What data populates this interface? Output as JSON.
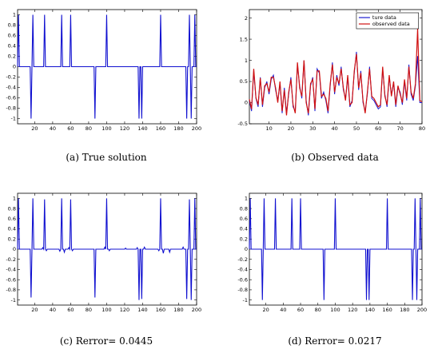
{
  "chart_data": [
    {
      "type": "line",
      "caption": "(a)  True solution",
      "xlim": [
        1,
        200
      ],
      "ylim": [
        -1.1,
        1.1
      ],
      "xticks": [
        20,
        40,
        60,
        80,
        100,
        120,
        140,
        160,
        180,
        200
      ],
      "yticks": [
        1,
        0.8,
        0.6,
        0.4,
        0.2,
        0,
        -0.2,
        -0.4,
        -0.6,
        -0.8,
        -1
      ],
      "color": "#1010d0",
      "spikes": [
        {
          "x": 2,
          "y": 1
        },
        {
          "x": 18,
          "y": 1
        },
        {
          "x": 16,
          "y": -1
        },
        {
          "x": 31,
          "y": 1
        },
        {
          "x": 50,
          "y": 1
        },
        {
          "x": 60,
          "y": 1
        },
        {
          "x": 87,
          "y": -1
        },
        {
          "x": 100,
          "y": 1
        },
        {
          "x": 136,
          "y": -1
        },
        {
          "x": 139,
          "y": -1
        },
        {
          "x": 160,
          "y": 1
        },
        {
          "x": 189,
          "y": -1
        },
        {
          "x": 192,
          "y": 1
        },
        {
          "x": 194,
          "y": -1
        },
        {
          "x": 198,
          "y": 1
        }
      ],
      "noise": []
    },
    {
      "type": "line",
      "caption": "(b)  Observed data",
      "xlim": [
        1,
        80
      ],
      "ylim": [
        -0.5,
        2.2
      ],
      "xticks": [
        10,
        20,
        30,
        40,
        50,
        60,
        70,
        80
      ],
      "yticks": [
        2,
        1.5,
        1,
        0.5,
        0,
        -0.5
      ],
      "legend": [
        "ture data",
        "observed data"
      ],
      "series": [
        {
          "name": "ture data",
          "color": "#1a1ad0",
          "x": [
            1,
            2,
            3,
            4,
            5,
            6,
            7,
            8,
            9,
            10,
            11,
            12,
            13,
            14,
            15,
            16,
            17,
            18,
            19,
            20,
            21,
            22,
            23,
            24,
            25,
            26,
            27,
            28,
            29,
            30,
            31,
            32,
            33,
            34,
            35,
            36,
            37,
            38,
            39,
            40,
            41,
            42,
            43,
            44,
            45,
            46,
            47,
            48,
            49,
            50,
            51,
            52,
            53,
            54,
            55,
            56,
            57,
            58,
            59,
            60,
            61,
            62,
            63,
            64,
            65,
            66,
            67,
            68,
            69,
            70,
            71,
            72,
            73,
            74,
            75,
            76,
            77,
            78,
            79,
            80
          ],
          "values": [
            0.05,
            -0.2,
            0.75,
            0.1,
            -0.1,
            0.6,
            -0.1,
            0.35,
            0.5,
            0.2,
            0.55,
            0.65,
            0.3,
            0.05,
            0.45,
            -0.25,
            0.35,
            -0.25,
            0.2,
            0.6,
            -0.1,
            -0.2,
            0.9,
            0.4,
            0.1,
            1.0,
            0.05,
            -0.3,
            0.4,
            0.6,
            -0.2,
            0.8,
            0.7,
            0.1,
            0.25,
            0.05,
            -0.25,
            0.4,
            0.95,
            0.2,
            0.65,
            0.4,
            0.85,
            0.3,
            0.1,
            0.6,
            -0.1,
            0.05,
            0.7,
            1.2,
            0.3,
            0.75,
            0.0,
            -0.2,
            0.2,
            0.85,
            0.1,
            0.05,
            -0.05,
            -0.15,
            -0.1,
            0.8,
            0.2,
            -0.1,
            0.6,
            0.2,
            0.45,
            -0.1,
            0.35,
            0.25,
            -0.05,
            0.5,
            0.05,
            0.9,
            0.2,
            0.05,
            0.4,
            1.1,
            0.0,
            0.0
          ]
        },
        {
          "name": "observed data",
          "color": "#d01010",
          "x": [
            1,
            2,
            3,
            4,
            5,
            6,
            7,
            8,
            9,
            10,
            11,
            12,
            13,
            14,
            15,
            16,
            17,
            18,
            19,
            20,
            21,
            22,
            23,
            24,
            25,
            26,
            27,
            28,
            29,
            30,
            31,
            32,
            33,
            34,
            35,
            36,
            37,
            38,
            39,
            40,
            41,
            42,
            43,
            44,
            45,
            46,
            47,
            48,
            49,
            50,
            51,
            52,
            53,
            54,
            55,
            56,
            57,
            58,
            59,
            60,
            61,
            62,
            63,
            64,
            65,
            66,
            67,
            68,
            69,
            70,
            71,
            72,
            73,
            74,
            75,
            76,
            77,
            78,
            79,
            80
          ],
          "values": [
            0.08,
            -0.15,
            0.8,
            0.12,
            -0.05,
            0.58,
            -0.05,
            0.4,
            0.45,
            0.25,
            0.6,
            0.6,
            0.35,
            0.0,
            0.5,
            -0.2,
            0.3,
            -0.3,
            0.25,
            0.55,
            -0.05,
            -0.25,
            0.95,
            0.35,
            0.15,
            1.0,
            0.0,
            -0.25,
            0.45,
            0.55,
            -0.15,
            0.75,
            0.75,
            0.15,
            0.2,
            0.1,
            -0.2,
            0.45,
            0.9,
            0.25,
            0.6,
            0.45,
            0.8,
            0.35,
            0.05,
            0.65,
            -0.05,
            0.0,
            0.75,
            1.15,
            0.35,
            0.7,
            0.05,
            -0.25,
            0.25,
            0.8,
            0.15,
            0.1,
            0.0,
            -0.1,
            -0.05,
            0.85,
            0.15,
            -0.05,
            0.65,
            0.15,
            0.5,
            -0.05,
            0.4,
            0.2,
            0.0,
            0.55,
            0.1,
            0.85,
            0.25,
            0.1,
            0.45,
            1.75,
            0.05,
            0.02
          ]
        }
      ]
    },
    {
      "type": "line",
      "caption": "(c)  Rerror= 0.0445",
      "xlim": [
        1,
        200
      ],
      "ylim": [
        -1.1,
        1.1
      ],
      "xticks": [
        20,
        40,
        60,
        80,
        100,
        120,
        140,
        160,
        180,
        200
      ],
      "yticks": [
        1,
        0.8,
        0.6,
        0.4,
        0.2,
        0,
        -0.2,
        -0.4,
        -0.6,
        -0.8,
        -1
      ],
      "color": "#1010d0",
      "spikes": [
        {
          "x": 2,
          "y": 1
        },
        {
          "x": 18,
          "y": 1
        },
        {
          "x": 16,
          "y": -0.95
        },
        {
          "x": 31,
          "y": 0.98
        },
        {
          "x": 50,
          "y": 1
        },
        {
          "x": 60,
          "y": 0.98
        },
        {
          "x": 87,
          "y": -0.95
        },
        {
          "x": 100,
          "y": 1
        },
        {
          "x": 136,
          "y": -1
        },
        {
          "x": 139,
          "y": -0.98
        },
        {
          "x": 160,
          "y": 1
        },
        {
          "x": 189,
          "y": -0.98
        },
        {
          "x": 192,
          "y": 0.98
        },
        {
          "x": 194,
          "y": -1
        },
        {
          "x": 198,
          "y": 1
        }
      ],
      "noise": [
        {
          "x": 29,
          "y": 0.03
        },
        {
          "x": 33,
          "y": -0.03
        },
        {
          "x": 48,
          "y": -0.04
        },
        {
          "x": 53,
          "y": -0.06
        },
        {
          "x": 58,
          "y": 0.03
        },
        {
          "x": 62,
          "y": -0.03
        },
        {
          "x": 98,
          "y": 0.04
        },
        {
          "x": 103,
          "y": -0.03
        },
        {
          "x": 121,
          "y": 0.02
        },
        {
          "x": 134,
          "y": 0.03
        },
        {
          "x": 142,
          "y": 0.04
        },
        {
          "x": 158,
          "y": -0.03
        },
        {
          "x": 163,
          "y": -0.08
        },
        {
          "x": 170,
          "y": -0.06
        },
        {
          "x": 185,
          "y": 0.04
        }
      ]
    },
    {
      "type": "line",
      "caption": "(d)  Rerror= 0.0217",
      "xlim": [
        1,
        200
      ],
      "ylim": [
        -1.1,
        1.1
      ],
      "xticks": [
        20,
        40,
        60,
        80,
        100,
        120,
        140,
        160,
        180,
        200
      ],
      "yticks": [
        1,
        0.8,
        0.6,
        0.4,
        0.2,
        0,
        -0.2,
        -0.4,
        -0.6,
        -0.8,
        -1
      ],
      "color": "#1010d0",
      "spikes": [
        {
          "x": 2,
          "y": 1
        },
        {
          "x": 18,
          "y": 1
        },
        {
          "x": 16,
          "y": -1
        },
        {
          "x": 31,
          "y": 1
        },
        {
          "x": 50,
          "y": 1
        },
        {
          "x": 60,
          "y": 1
        },
        {
          "x": 87,
          "y": -1
        },
        {
          "x": 100,
          "y": 1
        },
        {
          "x": 136,
          "y": -1
        },
        {
          "x": 139,
          "y": -1
        },
        {
          "x": 160,
          "y": 1
        },
        {
          "x": 189,
          "y": -1
        },
        {
          "x": 192,
          "y": 1
        },
        {
          "x": 194,
          "y": -1
        },
        {
          "x": 198,
          "y": 1
        }
      ],
      "noise": []
    }
  ]
}
